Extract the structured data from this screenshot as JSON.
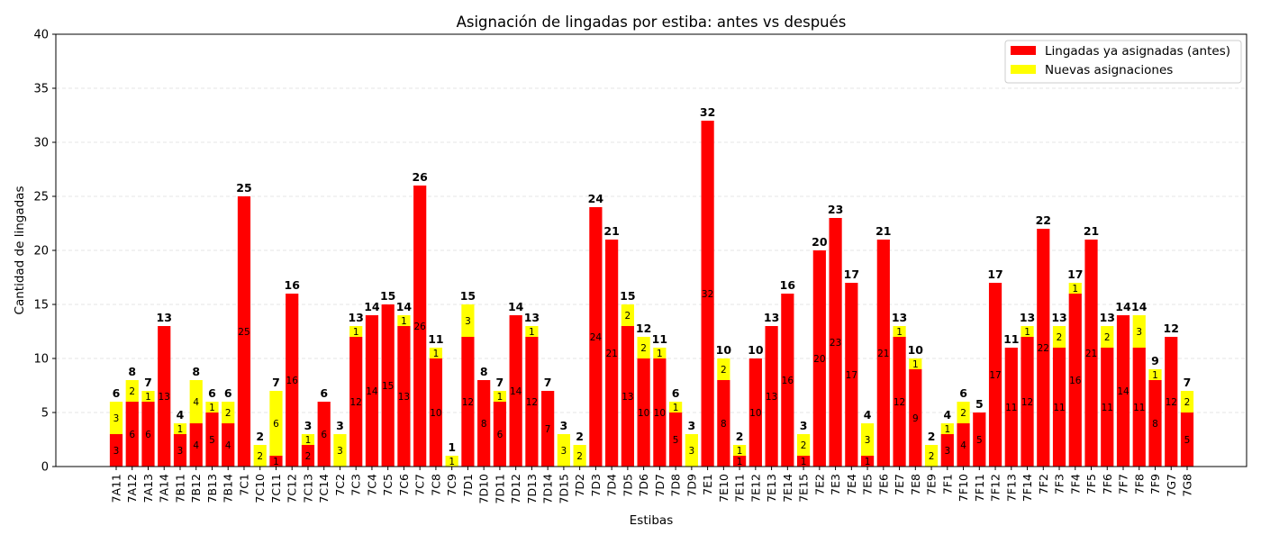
{
  "chart_data": {
    "type": "bar",
    "stacked": true,
    "title": "Asignación de lingadas por estiba: antes vs después",
    "xlabel": "Estibas",
    "ylabel": "Cantidad de lingadas",
    "ylim": [
      0,
      40
    ],
    "yticks": [
      0,
      5,
      10,
      15,
      20,
      25,
      30,
      35,
      40
    ],
    "grid": "horizontal-dashed",
    "legend_position": "top-right",
    "categories": [
      "7A11",
      "7A12",
      "7A13",
      "7A14",
      "7B11",
      "7B12",
      "7B13",
      "7B14",
      "7C1",
      "7C10",
      "7C11",
      "7C12",
      "7C13",
      "7C14",
      "7C2",
      "7C3",
      "7C4",
      "7C5",
      "7C6",
      "7C7",
      "7C8",
      "7C9",
      "7D1",
      "7D10",
      "7D11",
      "7D12",
      "7D13",
      "7D14",
      "7D15",
      "7D2",
      "7D3",
      "7D4",
      "7D5",
      "7D6",
      "7D7",
      "7D8",
      "7D9",
      "7E1",
      "7E10",
      "7E11",
      "7E12",
      "7E13",
      "7E14",
      "7E15",
      "7E2",
      "7E3",
      "7E4",
      "7E5",
      "7E6",
      "7E7",
      "7E8",
      "7E9",
      "7F1",
      "7F10",
      "7F11",
      "7F12",
      "7F13",
      "7F14",
      "7F2",
      "7F3",
      "7F4",
      "7F5",
      "7F6",
      "7F7",
      "7F8",
      "7F9",
      "7G7",
      "7G8"
    ],
    "series": [
      {
        "name": "Lingadas ya asignadas (antes)",
        "color": "#ff0000",
        "values": [
          3,
          6,
          6,
          13,
          3,
          4,
          5,
          4,
          25,
          0,
          1,
          16,
          2,
          6,
          0,
          12,
          14,
          15,
          13,
          26,
          10,
          0,
          12,
          8,
          6,
          14,
          12,
          7,
          0,
          0,
          24,
          21,
          13,
          10,
          10,
          5,
          0,
          32,
          8,
          1,
          10,
          13,
          16,
          1,
          20,
          23,
          17,
          1,
          21,
          12,
          9,
          0,
          3,
          4,
          5,
          17,
          11,
          12,
          22,
          11,
          16,
          21,
          11,
          14,
          11,
          8,
          12,
          5
        ]
      },
      {
        "name": "Nuevas asignaciones",
        "color": "#ffff00",
        "values": [
          3,
          2,
          1,
          0,
          1,
          4,
          1,
          2,
          0,
          2,
          6,
          0,
          1,
          0,
          3,
          1,
          0,
          0,
          1,
          0,
          1,
          1,
          3,
          0,
          1,
          0,
          1,
          0,
          3,
          2,
          0,
          0,
          2,
          2,
          1,
          1,
          3,
          0,
          2,
          1,
          0,
          0,
          0,
          2,
          0,
          0,
          0,
          3,
          0,
          1,
          1,
          2,
          1,
          2,
          0,
          0,
          0,
          1,
          0,
          2,
          1,
          0,
          2,
          0,
          3,
          1,
          0,
          2
        ]
      }
    ]
  }
}
